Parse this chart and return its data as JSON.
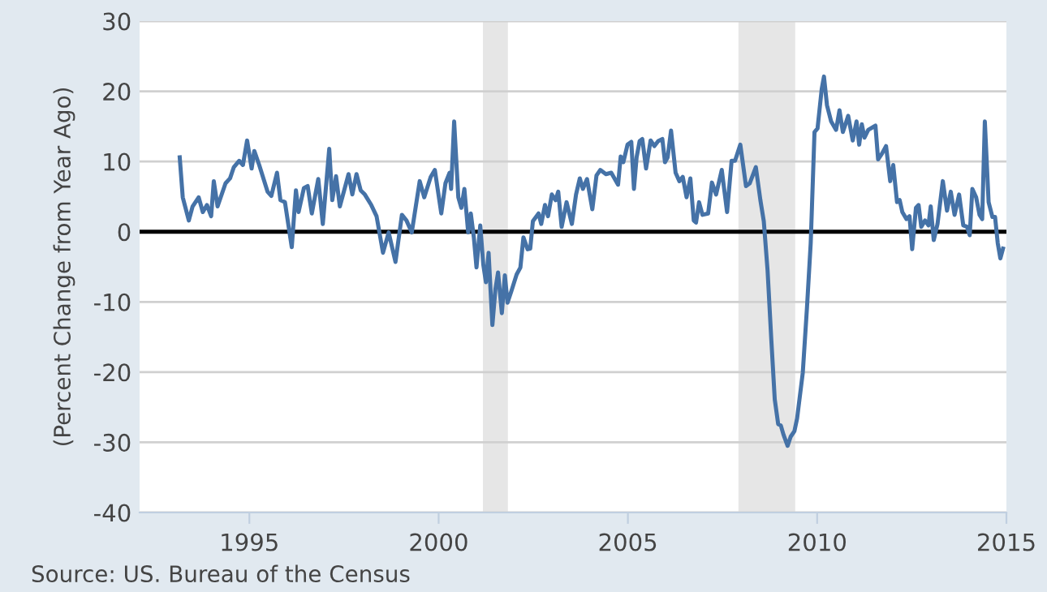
{
  "chart_data": {
    "type": "line",
    "ylabel": "(Percent Change from Year Ago)",
    "annotations": [
      "Source: US. Bureau of the Census"
    ],
    "xlim": [
      1992.1,
      2015
    ],
    "xticks": [
      1995,
      2000,
      2005,
      2010,
      2015
    ],
    "ylim": [
      -40,
      30
    ],
    "yticks": [
      -40,
      -30,
      -20,
      -10,
      0,
      10,
      20,
      30
    ],
    "grid": "y",
    "marker": "none",
    "line_style": "solid",
    "ref_lines": [
      {
        "axis": "y",
        "value": 0,
        "color": "#000000",
        "line_style": "solid"
      }
    ],
    "bands": [
      {
        "axis": "x",
        "from": 2001.17,
        "to": 2001.83,
        "color": "#e6e6e6"
      },
      {
        "axis": "x",
        "from": 2007.92,
        "to": 2009.42,
        "color": "#e6e6e6"
      }
    ],
    "series": [
      {
        "color": "#4572a7",
        "x": [
          1993.16,
          1993.24,
          1993.4,
          1993.5,
          1993.66,
          1993.77,
          1993.88,
          1993.99,
          1994.06,
          1994.16,
          1994.37,
          1994.49,
          1994.59,
          1994.73,
          1994.83,
          1994.94,
          1995.06,
          1995.13,
          1995.26,
          1995.48,
          1995.58,
          1995.73,
          1995.82,
          1995.94,
          1996.12,
          1996.23,
          1996.3,
          1996.44,
          1996.54,
          1996.65,
          1996.82,
          1996.94,
          1997.11,
          1997.19,
          1997.29,
          1997.39,
          1997.62,
          1997.72,
          1997.83,
          1997.94,
          1998.05,
          1998.22,
          1998.36,
          1998.53,
          1998.68,
          1998.86,
          1999.03,
          1999.15,
          1999.29,
          1999.5,
          1999.62,
          1999.79,
          1999.9,
          2000.07,
          2000.18,
          2000.29,
          2000.33,
          2000.41,
          2000.52,
          2000.6,
          2000.68,
          2000.78,
          2000.85,
          2000.93,
          2001.0,
          2001.1,
          2001.18,
          2001.25,
          2001.32,
          2001.42,
          2001.5,
          2001.57,
          2001.67,
          2001.75,
          2001.82,
          2001.92,
          2002.06,
          2002.16,
          2002.24,
          2002.35,
          2002.42,
          2002.49,
          2002.64,
          2002.71,
          2002.81,
          2002.89,
          2002.99,
          2003.09,
          2003.16,
          2003.25,
          2003.38,
          2003.52,
          2003.63,
          2003.73,
          2003.81,
          2003.92,
          2004.06,
          2004.17,
          2004.27,
          2004.42,
          2004.56,
          2004.74,
          2004.81,
          2004.88,
          2004.99,
          2005.09,
          2005.16,
          2005.23,
          2005.31,
          2005.38,
          2005.48,
          2005.6,
          2005.7,
          2005.8,
          2005.91,
          2005.98,
          2006.05,
          2006.14,
          2006.26,
          2006.36,
          2006.45,
          2006.55,
          2006.65,
          2006.74,
          2006.8,
          2006.88,
          2006.97,
          2007.12,
          2007.22,
          2007.33,
          2007.48,
          2007.62,
          2007.74,
          2007.83,
          2007.97,
          2008.12,
          2008.22,
          2008.38,
          2008.5,
          2008.59,
          2008.69,
          2008.79,
          2008.88,
          2008.97,
          2009.04,
          2009.11,
          2009.22,
          2009.3,
          2009.4,
          2009.47,
          2009.62,
          2009.73,
          2009.83,
          2009.93,
          2010.01,
          2010.12,
          2010.18,
          2010.26,
          2010.37,
          2010.5,
          2010.59,
          2010.68,
          2010.82,
          2010.94,
          2011.04,
          2011.11,
          2011.18,
          2011.25,
          2011.35,
          2011.54,
          2011.61,
          2011.71,
          2011.82,
          2011.93,
          2012.01,
          2012.11,
          2012.18,
          2012.25,
          2012.36,
          2012.44,
          2012.51,
          2012.61,
          2012.68,
          2012.75,
          2012.85,
          2012.94,
          2013.0,
          2013.08,
          2013.18,
          2013.32,
          2013.43,
          2013.53,
          2013.63,
          2013.75,
          2013.86,
          2013.96,
          2014.03,
          2014.1,
          2014.2,
          2014.29,
          2014.36,
          2014.43,
          2014.53,
          2014.63,
          2014.7,
          2014.77,
          2014.84,
          2014.91
        ],
        "values": [
          10.6,
          4.9,
          1.6,
          3.6,
          4.9,
          2.8,
          3.8,
          2.2,
          7.2,
          3.6,
          6.9,
          7.6,
          9.2,
          10.1,
          9.5,
          13.0,
          9.0,
          11.5,
          9.5,
          5.7,
          5.1,
          8.4,
          4.5,
          4.2,
          -2.2,
          5.9,
          2.8,
          6.2,
          6.5,
          2.6,
          7.5,
          1.1,
          11.8,
          4.5,
          7.9,
          3.6,
          8.2,
          5.3,
          8.2,
          5.9,
          5.3,
          3.8,
          2.2,
          -3.0,
          -0.1,
          -4.3,
          2.4,
          1.6,
          -0.1,
          7.2,
          4.9,
          7.8,
          8.8,
          2.6,
          6.9,
          8.4,
          6.1,
          15.7,
          4.9,
          3.4,
          6.1,
          -0.1,
          2.6,
          -0.8,
          -5.1,
          0.9,
          -4.7,
          -7.2,
          -3.0,
          -13.3,
          -8.2,
          -5.8,
          -11.6,
          -6.2,
          -10.1,
          -8.5,
          -6.1,
          -5.1,
          -0.8,
          -2.5,
          -2.4,
          1.5,
          2.6,
          1.1,
          3.8,
          2.2,
          5.3,
          4.5,
          5.7,
          0.7,
          4.2,
          1.1,
          5.3,
          7.6,
          6.1,
          7.5,
          3.2,
          8.0,
          8.8,
          8.2,
          8.4,
          6.7,
          10.7,
          9.9,
          12.4,
          12.8,
          6.1,
          10.6,
          12.9,
          13.2,
          9.0,
          13.0,
          12.2,
          12.9,
          13.2,
          9.9,
          10.6,
          14.4,
          8.4,
          7.2,
          7.8,
          4.9,
          7.6,
          1.6,
          1.3,
          4.2,
          2.4,
          2.6,
          7.0,
          5.3,
          8.8,
          2.8,
          10.1,
          10.1,
          12.4,
          6.5,
          6.9,
          9.2,
          4.5,
          1.5,
          -5.5,
          -15.5,
          -23.9,
          -27.4,
          -27.6,
          -28.9,
          -30.5,
          -29.2,
          -28.4,
          -26.6,
          -20.1,
          -10.9,
          -1.6,
          14.2,
          14.7,
          20.3,
          22.1,
          18.0,
          15.7,
          14.5,
          17.3,
          14.2,
          16.5,
          13.0,
          15.7,
          12.4,
          15.3,
          13.4,
          14.5,
          15.1,
          10.3,
          11.1,
          12.2,
          7.2,
          9.5,
          4.2,
          4.5,
          2.8,
          1.8,
          2.2,
          -2.5,
          3.4,
          3.8,
          0.7,
          1.6,
          0.9,
          3.6,
          -1.2,
          1.1,
          7.2,
          3.0,
          5.7,
          2.4,
          5.3,
          0.9,
          0.7,
          -0.5,
          6.1,
          4.9,
          2.4,
          1.8,
          15.7,
          4.2,
          2.1,
          2.1,
          -1.6,
          -3.8,
          -2.4
        ]
      }
    ]
  }
}
